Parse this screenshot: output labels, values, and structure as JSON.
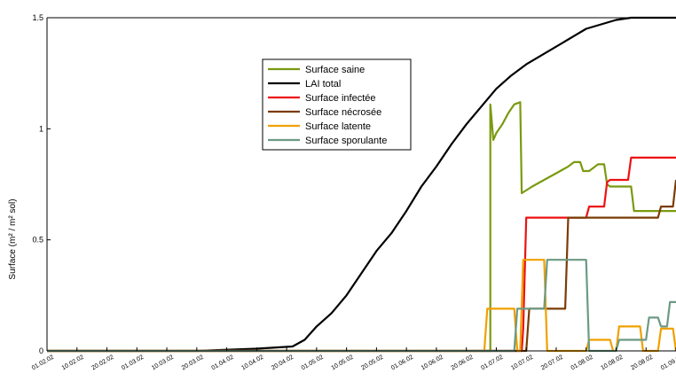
{
  "chart_data": {
    "type": "line",
    "ylabel": "Surface (m² / m² sol)",
    "ylim": [
      0,
      1.5
    ],
    "yticks": [
      {
        "value": 0,
        "label": "0"
      },
      {
        "value": 0.5,
        "label": "0.5"
      },
      {
        "value": 1,
        "label": "1"
      },
      {
        "value": 1.5,
        "label": "1.5"
      }
    ],
    "xticks": [
      "01.02.02",
      "10.02.02",
      "20.02.02",
      "01.03.02",
      "10.03.02",
      "20.03.02",
      "01.04.02",
      "10.04.02",
      "20.04.02",
      "01.05.02",
      "10.05.02",
      "20.05.02",
      "01.06.02",
      "10.06.02",
      "20.06.02",
      "01.07.02",
      "10.07.02",
      "20.07.02",
      "01.08.02",
      "10.08.02",
      "20.08.02",
      "01.09.02"
    ],
    "legend_position": "upper-center",
    "series": [
      {
        "name": "Surface saine",
        "color": "#7a9a10",
        "points": [
          [
            0,
            0
          ],
          [
            14.8,
            0
          ],
          [
            14.8,
            1.11
          ],
          [
            14.9,
            0.95
          ],
          [
            15.0,
            0.98
          ],
          [
            15.2,
            1.02
          ],
          [
            15.4,
            1.07
          ],
          [
            15.6,
            1.11
          ],
          [
            15.8,
            1.12
          ],
          [
            15.85,
            0.71
          ],
          [
            16.2,
            0.74
          ],
          [
            16.6,
            0.77
          ],
          [
            17.0,
            0.8
          ],
          [
            17.4,
            0.83
          ],
          [
            17.6,
            0.85
          ],
          [
            17.8,
            0.85
          ],
          [
            17.9,
            0.81
          ],
          [
            18.1,
            0.81
          ],
          [
            18.4,
            0.84
          ],
          [
            18.6,
            0.84
          ],
          [
            18.7,
            0.75
          ],
          [
            18.8,
            0.74
          ],
          [
            19.5,
            0.74
          ],
          [
            19.6,
            0.63
          ],
          [
            21,
            0.63
          ]
        ]
      },
      {
        "name": "LAI total",
        "color": "#000000",
        "points": [
          [
            0,
            0
          ],
          [
            5,
            0
          ],
          [
            6,
            0.005
          ],
          [
            7,
            0.01
          ],
          [
            8.2,
            0.02
          ],
          [
            8.6,
            0.05
          ],
          [
            9,
            0.11
          ],
          [
            9.5,
            0.17
          ],
          [
            10,
            0.25
          ],
          [
            10.5,
            0.35
          ],
          [
            11,
            0.45
          ],
          [
            11.5,
            0.53
          ],
          [
            12,
            0.63
          ],
          [
            12.5,
            0.74
          ],
          [
            13,
            0.83
          ],
          [
            13.5,
            0.93
          ],
          [
            14,
            1.02
          ],
          [
            14.5,
            1.1
          ],
          [
            15,
            1.18
          ],
          [
            15.5,
            1.24
          ],
          [
            16,
            1.29
          ],
          [
            16.5,
            1.33
          ],
          [
            17,
            1.37
          ],
          [
            17.5,
            1.41
          ],
          [
            18,
            1.45
          ],
          [
            18.5,
            1.47
          ],
          [
            19,
            1.49
          ],
          [
            19.5,
            1.5
          ],
          [
            21,
            1.5
          ]
        ]
      },
      {
        "name": "Surface infectée",
        "color": "#ee1111",
        "points": [
          [
            0,
            0
          ],
          [
            15.85,
            0
          ],
          [
            15.9,
            0.1
          ],
          [
            16.0,
            0.6
          ],
          [
            18.0,
            0.6
          ],
          [
            18.1,
            0.65
          ],
          [
            18.6,
            0.65
          ],
          [
            18.7,
            0.76
          ],
          [
            18.8,
            0.77
          ],
          [
            19.4,
            0.77
          ],
          [
            19.5,
            0.87
          ],
          [
            21,
            0.87
          ]
        ]
      },
      {
        "name": "Surface nécrosée",
        "color": "#7a3c05",
        "points": [
          [
            0,
            0
          ],
          [
            16.0,
            0
          ],
          [
            16.1,
            0.19
          ],
          [
            17.3,
            0.19
          ],
          [
            17.4,
            0.6
          ],
          [
            20.4,
            0.6
          ],
          [
            20.5,
            0.65
          ],
          [
            20.9,
            0.65
          ],
          [
            21,
            0.77
          ]
        ]
      },
      {
        "name": "Surface latente",
        "color": "#f0a000",
        "points": [
          [
            0,
            0
          ],
          [
            14.6,
            0
          ],
          [
            14.7,
            0.19
          ],
          [
            15.6,
            0.19
          ],
          [
            15.7,
            0
          ],
          [
            15.8,
            0
          ],
          [
            15.9,
            0.41
          ],
          [
            16.6,
            0.41
          ],
          [
            16.7,
            0
          ],
          [
            18.0,
            0
          ],
          [
            18.1,
            0.05
          ],
          [
            18.8,
            0.05
          ],
          [
            18.9,
            0
          ],
          [
            19.0,
            0
          ],
          [
            19.1,
            0.11
          ],
          [
            19.8,
            0.11
          ],
          [
            19.9,
            0
          ],
          [
            20.4,
            0
          ],
          [
            20.5,
            0.1
          ],
          [
            20.9,
            0.1
          ],
          [
            21,
            0
          ]
        ]
      },
      {
        "name": "Surface sporulante",
        "color": "#6c9a84",
        "points": [
          [
            0,
            0
          ],
          [
            15.6,
            0
          ],
          [
            15.7,
            0.19
          ],
          [
            16.6,
            0.19
          ],
          [
            16.7,
            0.41
          ],
          [
            18.0,
            0.41
          ],
          [
            18.1,
            0
          ],
          [
            19.0,
            0
          ],
          [
            19.1,
            0.05
          ],
          [
            20.0,
            0.05
          ],
          [
            20.1,
            0.15
          ],
          [
            20.4,
            0.15
          ],
          [
            20.5,
            0.11
          ],
          [
            20.7,
            0.11
          ],
          [
            20.8,
            0.22
          ],
          [
            21,
            0.22
          ]
        ]
      }
    ]
  }
}
